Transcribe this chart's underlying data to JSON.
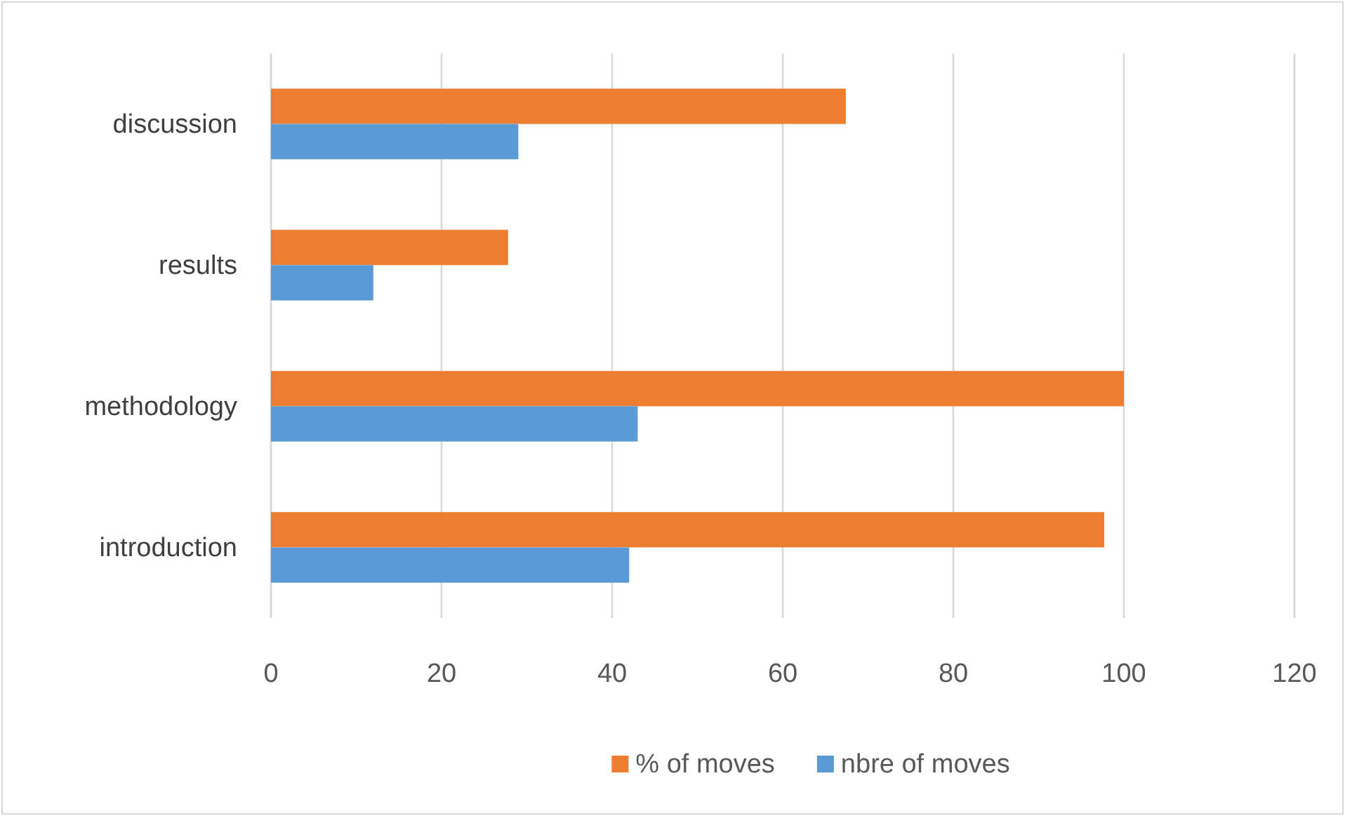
{
  "chart_data": {
    "type": "bar",
    "orientation": "horizontal",
    "categories": [
      "discussion",
      "results",
      "methodology",
      "introduction"
    ],
    "series": [
      {
        "name": "% of moves",
        "color": "#ed7d31",
        "values": [
          67.4,
          27.8,
          100,
          97.7
        ]
      },
      {
        "name": "nbre of moves",
        "color": "#5b9bd5",
        "values": [
          29,
          12,
          43,
          42
        ]
      }
    ],
    "xlim": [
      0,
      120
    ],
    "xticks": [
      0,
      20,
      40,
      60,
      80,
      100,
      120
    ],
    "grid": "x",
    "legend": "bottom"
  }
}
